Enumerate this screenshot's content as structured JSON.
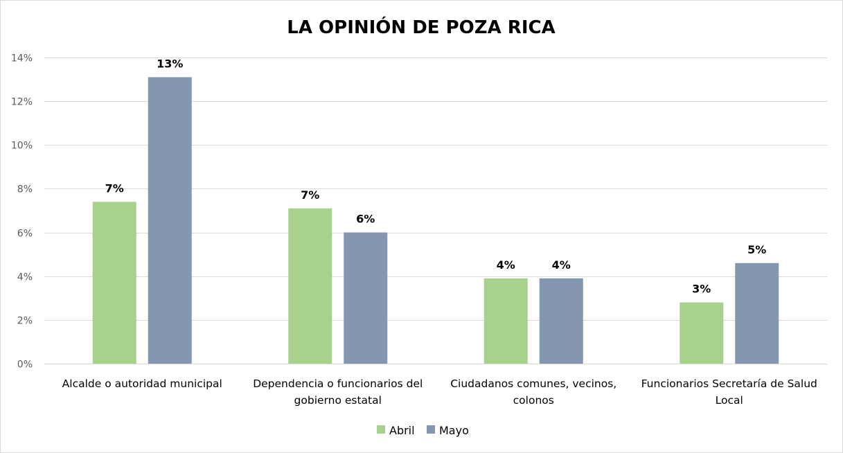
{
  "chart_data": {
    "type": "bar",
    "title": "LA OPINIÓN DE POZA RICA",
    "xlabel": "",
    "ylabel": "",
    "ylim": [
      0,
      0.14
    ],
    "y_ticks": [
      0,
      0.02,
      0.04,
      0.06,
      0.08,
      0.1,
      0.12,
      0.14
    ],
    "y_tick_labels": [
      "0%",
      "2%",
      "4%",
      "6%",
      "8%",
      "10%",
      "12%",
      "14%"
    ],
    "grid": true,
    "legend_position": "bottom",
    "categories": [
      [
        "Alcalde  o autoridad municipal"
      ],
      [
        "Dependencia o funcionarios del",
        "gobierno estatal"
      ],
      [
        "Ciudadanos comunes, vecinos,",
        "colonos"
      ],
      [
        "Funcionarios Secretaría de Salud",
        "Local"
      ]
    ],
    "series": [
      {
        "name": "Abril",
        "color": "#a9d18e",
        "values": [
          0.074,
          0.071,
          0.039,
          0.028
        ],
        "labels": [
          "7%",
          "7%",
          "4%",
          "3%"
        ]
      },
      {
        "name": "Mayo",
        "color": "#8497b0",
        "values": [
          0.131,
          0.06,
          0.039,
          0.046
        ],
        "labels": [
          "13%",
          "6%",
          "4%",
          "5%"
        ]
      }
    ]
  }
}
